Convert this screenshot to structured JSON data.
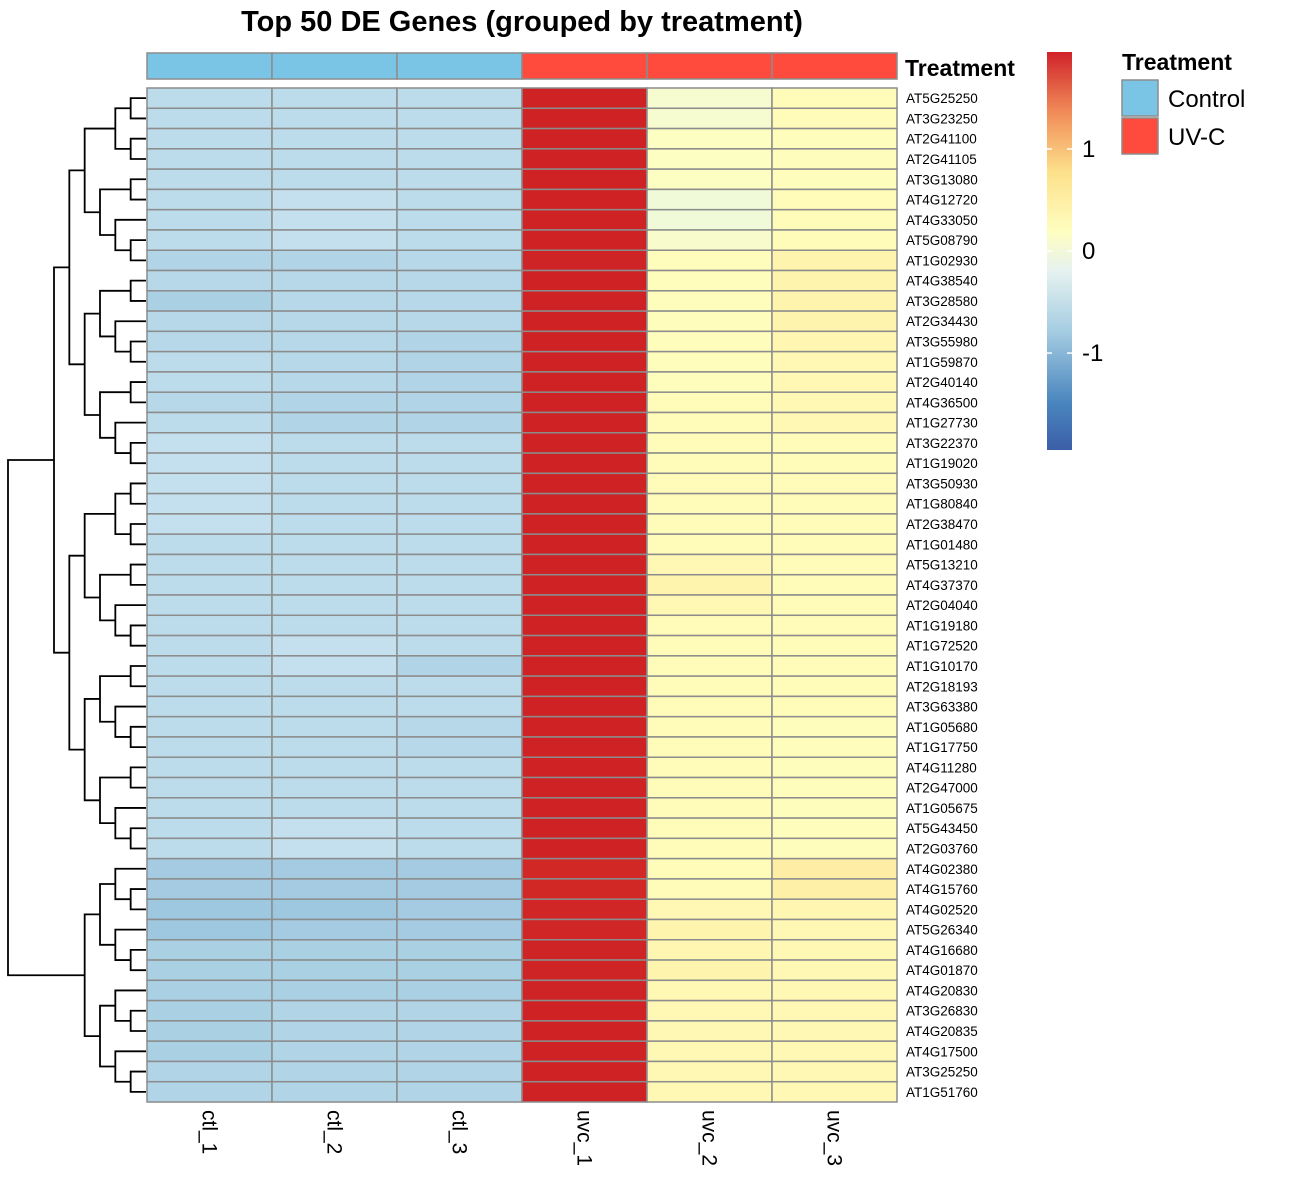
{
  "chart_data": {
    "type": "heatmap",
    "title": "Top 50 DE Genes (grouped by treatment)",
    "columns": [
      "ctl_1",
      "ctl_2",
      "ctl_3",
      "uvc_1",
      "uvc_2",
      "uvc_3"
    ],
    "column_annotation": {
      "name": "Treatment",
      "values": [
        "Control",
        "Control",
        "Control",
        "UV-C",
        "UV-C",
        "UV-C"
      ],
      "colors": {
        "Control": "#7ac4e5",
        "UV-C": "#ff4a3e"
      }
    },
    "rows": [
      "AT5G25250",
      "AT3G23250",
      "AT2G41100",
      "AT2G41105",
      "AT3G13080",
      "AT4G12720",
      "AT4G33050",
      "AT5G08790",
      "AT1G02930",
      "AT4G38540",
      "AT3G28580",
      "AT2G34430",
      "AT3G55980",
      "AT1G59870",
      "AT2G40140",
      "AT4G36500",
      "AT1G27730",
      "AT3G22370",
      "AT1G19020",
      "AT3G50930",
      "AT1G80840",
      "AT2G38470",
      "AT1G01480",
      "AT5G13210",
      "AT4G37370",
      "AT2G04040",
      "AT1G19180",
      "AT1G72520",
      "AT1G10170",
      "AT2G18193",
      "AT3G63380",
      "AT1G05680",
      "AT1G17750",
      "AT4G11280",
      "AT2G47000",
      "AT1G05675",
      "AT5G43450",
      "AT2G03760",
      "AT4G02380",
      "AT4G15760",
      "AT4G02520",
      "AT5G26340",
      "AT4G16680",
      "AT4G01870",
      "AT4G20830",
      "AT3G26830",
      "AT4G20835",
      "AT4G17500",
      "AT3G25250",
      "AT1G51760"
    ],
    "values": [
      [
        -0.72,
        -0.72,
        -0.72,
        1.78,
        -0.15,
        0.07
      ],
      [
        -0.72,
        -0.72,
        -0.72,
        1.78,
        -0.15,
        0.07
      ],
      [
        -0.72,
        -0.72,
        -0.72,
        1.78,
        -0.03,
        0.03
      ],
      [
        -0.72,
        -0.72,
        -0.72,
        1.78,
        -0.03,
        0.03
      ],
      [
        -0.72,
        -0.72,
        -0.72,
        1.78,
        -0.03,
        0.03
      ],
      [
        -0.72,
        -0.68,
        -0.72,
        1.78,
        -0.22,
        0.07
      ],
      [
        -0.72,
        -0.68,
        -0.72,
        1.78,
        -0.22,
        0.07
      ],
      [
        -0.72,
        -0.68,
        -0.72,
        1.78,
        -0.11,
        0.07
      ],
      [
        -0.8,
        -0.8,
        -0.76,
        1.74,
        0.03,
        0.18
      ],
      [
        -0.76,
        -0.76,
        -0.76,
        1.78,
        0.03,
        0.18
      ],
      [
        -0.84,
        -0.76,
        -0.76,
        1.78,
        0.03,
        0.18
      ],
      [
        -0.76,
        -0.76,
        -0.76,
        1.78,
        0.03,
        0.18
      ],
      [
        -0.76,
        -0.76,
        -0.8,
        1.78,
        0.03,
        0.14
      ],
      [
        -0.72,
        -0.76,
        -0.8,
        1.78,
        0.03,
        0.11
      ],
      [
        -0.72,
        -0.76,
        -0.8,
        1.78,
        0.03,
        0.11
      ],
      [
        -0.76,
        -0.8,
        -0.8,
        1.78,
        0.07,
        0.11
      ],
      [
        -0.72,
        -0.8,
        -0.8,
        1.78,
        0.07,
        0.11
      ],
      [
        -0.68,
        -0.72,
        -0.72,
        1.78,
        0.07,
        0.07
      ],
      [
        -0.68,
        -0.72,
        -0.72,
        1.78,
        0.07,
        0.07
      ],
      [
        -0.68,
        -0.72,
        -0.72,
        1.78,
        0.07,
        0.07
      ],
      [
        -0.68,
        -0.72,
        -0.72,
        1.78,
        0.07,
        0.07
      ],
      [
        -0.68,
        -0.72,
        -0.72,
        1.78,
        0.07,
        0.07
      ],
      [
        -0.72,
        -0.72,
        -0.72,
        1.78,
        0.07,
        0.07
      ],
      [
        -0.72,
        -0.72,
        -0.72,
        1.78,
        0.11,
        0.07
      ],
      [
        -0.72,
        -0.72,
        -0.72,
        1.78,
        0.18,
        0.07
      ],
      [
        -0.72,
        -0.72,
        -0.72,
        1.78,
        0.11,
        0.07
      ],
      [
        -0.72,
        -0.72,
        -0.72,
        1.78,
        0.07,
        0.07
      ],
      [
        -0.72,
        -0.68,
        -0.72,
        1.78,
        0.07,
        0.07
      ],
      [
        -0.72,
        -0.68,
        -0.8,
        1.78,
        0.07,
        0.07
      ],
      [
        -0.72,
        -0.72,
        -0.72,
        1.78,
        0.07,
        0.07
      ],
      [
        -0.72,
        -0.72,
        -0.72,
        1.78,
        0.07,
        0.07
      ],
      [
        -0.72,
        -0.72,
        -0.76,
        1.78,
        0.07,
        0.03
      ],
      [
        -0.72,
        -0.72,
        -0.76,
        1.78,
        0.07,
        0.03
      ],
      [
        -0.72,
        -0.72,
        -0.72,
        1.78,
        0.07,
        0.03
      ],
      [
        -0.72,
        -0.72,
        -0.72,
        1.78,
        0.07,
        0.03
      ],
      [
        -0.72,
        -0.72,
        -0.72,
        1.78,
        0.07,
        0.03
      ],
      [
        -0.72,
        -0.68,
        -0.72,
        1.78,
        0.07,
        0.03
      ],
      [
        -0.72,
        -0.68,
        -0.72,
        1.78,
        0.07,
        0.03
      ],
      [
        -0.88,
        -0.88,
        -0.88,
        1.67,
        0.07,
        0.28
      ],
      [
        -0.88,
        -0.88,
        -0.88,
        1.67,
        0.07,
        0.25
      ],
      [
        -0.92,
        -0.92,
        -0.88,
        1.7,
        0.11,
        0.14
      ],
      [
        -0.92,
        -0.88,
        -0.88,
        1.7,
        0.18,
        0.11
      ],
      [
        -0.84,
        -0.84,
        -0.84,
        1.74,
        0.14,
        0.11
      ],
      [
        -0.84,
        -0.84,
        -0.84,
        1.74,
        0.18,
        0.11
      ],
      [
        -0.84,
        -0.84,
        -0.84,
        1.74,
        0.11,
        0.11
      ],
      [
        -0.84,
        -0.8,
        -0.8,
        1.78,
        0.11,
        0.11
      ],
      [
        -0.84,
        -0.8,
        -0.8,
        1.78,
        0.11,
        0.11
      ],
      [
        -0.84,
        -0.8,
        -0.8,
        1.78,
        0.11,
        0.11
      ],
      [
        -0.8,
        -0.8,
        -0.8,
        1.78,
        0.11,
        0.11
      ],
      [
        -0.8,
        -0.8,
        -0.8,
        1.78,
        0.11,
        0.11
      ]
    ],
    "colorbar": {
      "ticks": [
        1,
        0,
        -1
      ],
      "tick_labels": [
        "1",
        "0",
        "-1"
      ],
      "range": [
        -1.95,
        1.95
      ]
    },
    "legend": {
      "title": "Treatment",
      "items": [
        {
          "label": "Control",
          "color": "#7ac4e5"
        },
        {
          "label": "UV-C",
          "color": "#ff4a3e"
        }
      ]
    },
    "cluster_tree": {
      "clusters": [
        {
          "name": "g1",
          "rows": [
            0,
            1,
            2,
            3,
            4,
            5,
            6,
            7,
            8,
            9,
            10,
            11,
            12,
            13,
            14,
            15,
            16,
            17,
            18,
            19,
            20,
            21,
            22,
            23,
            24,
            25,
            26,
            27,
            28,
            29,
            30,
            31,
            32,
            33,
            34,
            35,
            36,
            37
          ]
        },
        {
          "name": "g2",
          "rows": [
            38,
            39,
            40,
            41,
            42,
            43,
            44,
            45,
            46,
            47,
            48,
            49
          ]
        }
      ]
    }
  }
}
